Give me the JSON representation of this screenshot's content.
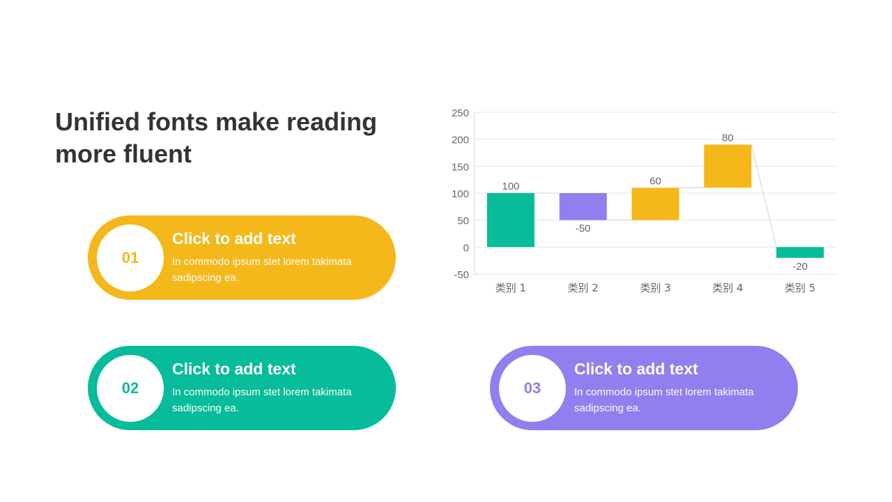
{
  "title": "Unified fonts make reading more fluent",
  "cards": [
    {
      "number": "01",
      "heading": "Click to add text",
      "body": "In commodo ipsum stet lorem takimata sadipscing ea.",
      "color": "#F4B81A"
    },
    {
      "number": "02",
      "heading": "Click to add text",
      "body": "In commodo ipsum stet lorem takimata sadipscing ea.",
      "color": "#06BC9A"
    },
    {
      "number": "03",
      "heading": "Click to add text",
      "body": "In commodo ipsum stet lorem takimata sadipscing ea.",
      "color": "#8F7FEF"
    }
  ],
  "chart_data": {
    "type": "bar",
    "subtype": "waterfall",
    "categories": [
      "类别 1",
      "类别 2",
      "类别 3",
      "类别 4",
      "类别 5"
    ],
    "bars": [
      {
        "low": 0,
        "high": 100,
        "label": "100",
        "color": "#06BC9A"
      },
      {
        "low": 50,
        "high": 100,
        "label": "-50",
        "color": "#8F7FEF"
      },
      {
        "low": 50,
        "high": 110,
        "label": "60",
        "color": "#F4B81A"
      },
      {
        "low": 110,
        "high": 190,
        "label": "80",
        "color": "#F4B81A"
      },
      {
        "low": -20,
        "high": 0,
        "label": "-20",
        "color": "#06BC9A"
      }
    ],
    "ylim": [
      -50,
      250
    ],
    "yticks": [
      250,
      200,
      150,
      100,
      50,
      0,
      -50
    ],
    "grid": true
  }
}
